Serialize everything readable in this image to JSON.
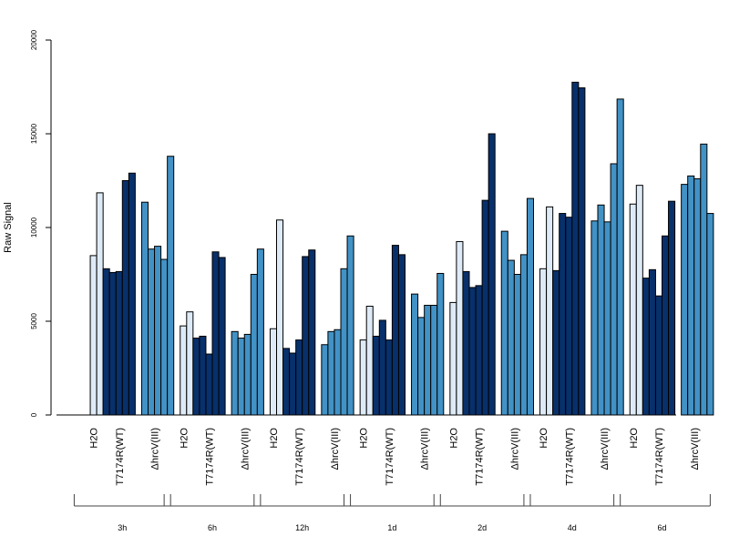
{
  "chart_data": {
    "type": "bar",
    "title": "",
    "ylabel": "Raw Signal",
    "xlabel": "",
    "ylim": [
      0,
      20000
    ],
    "yticks": [
      0,
      5000,
      10000,
      15000,
      20000
    ],
    "grid": false,
    "legend": "none",
    "time_points": [
      "3h",
      "6h",
      "12h",
      "1d",
      "2d",
      "4d",
      "6d"
    ],
    "groups": [
      {
        "label": "H2O",
        "color": "#deebf7"
      },
      {
        "label": "T7174R(WT)",
        "color": "#08306b"
      },
      {
        "label": "ΔhrcV(III)",
        "color": "#4292c6"
      }
    ],
    "values": [
      [
        [
          0,
          8500,
          11850
        ],
        [
          7800,
          7600,
          7650,
          12500,
          12900
        ],
        [
          0,
          11350,
          8850,
          9000,
          8300,
          13800
        ]
      ],
      [
        [
          0,
          4750,
          5500
        ],
        [
          4100,
          4200,
          3250,
          8700,
          8400
        ],
        [
          0,
          4450,
          4100,
          4300,
          7500,
          8850
        ]
      ],
      [
        [
          0,
          4600,
          10400
        ],
        [
          3550,
          3300,
          4000,
          8450,
          8800
        ],
        [
          0,
          3750,
          4450,
          4550,
          7800,
          9550
        ]
      ],
      [
        [
          0,
          4000,
          5800
        ],
        [
          4200,
          5050,
          4000,
          9050,
          8550
        ],
        [
          0,
          6450,
          5200,
          5850,
          5850,
          7550
        ]
      ],
      [
        [
          0,
          6000,
          9250
        ],
        [
          7650,
          6800,
          6900,
          11450,
          15000
        ],
        [
          0,
          9800,
          8250,
          7500,
          8550,
          11550
        ]
      ],
      [
        [
          0,
          7800,
          11100
        ],
        [
          7700,
          10750,
          10550,
          17750,
          17450
        ],
        [
          0,
          10350,
          11200,
          10300,
          13400,
          16850
        ]
      ],
      [
        [
          0,
          11250,
          12250
        ],
        [
          7300,
          7750,
          6350,
          9550,
          11400
        ],
        [
          0,
          12300,
          12750,
          12600,
          14450,
          10750
        ]
      ]
    ]
  }
}
